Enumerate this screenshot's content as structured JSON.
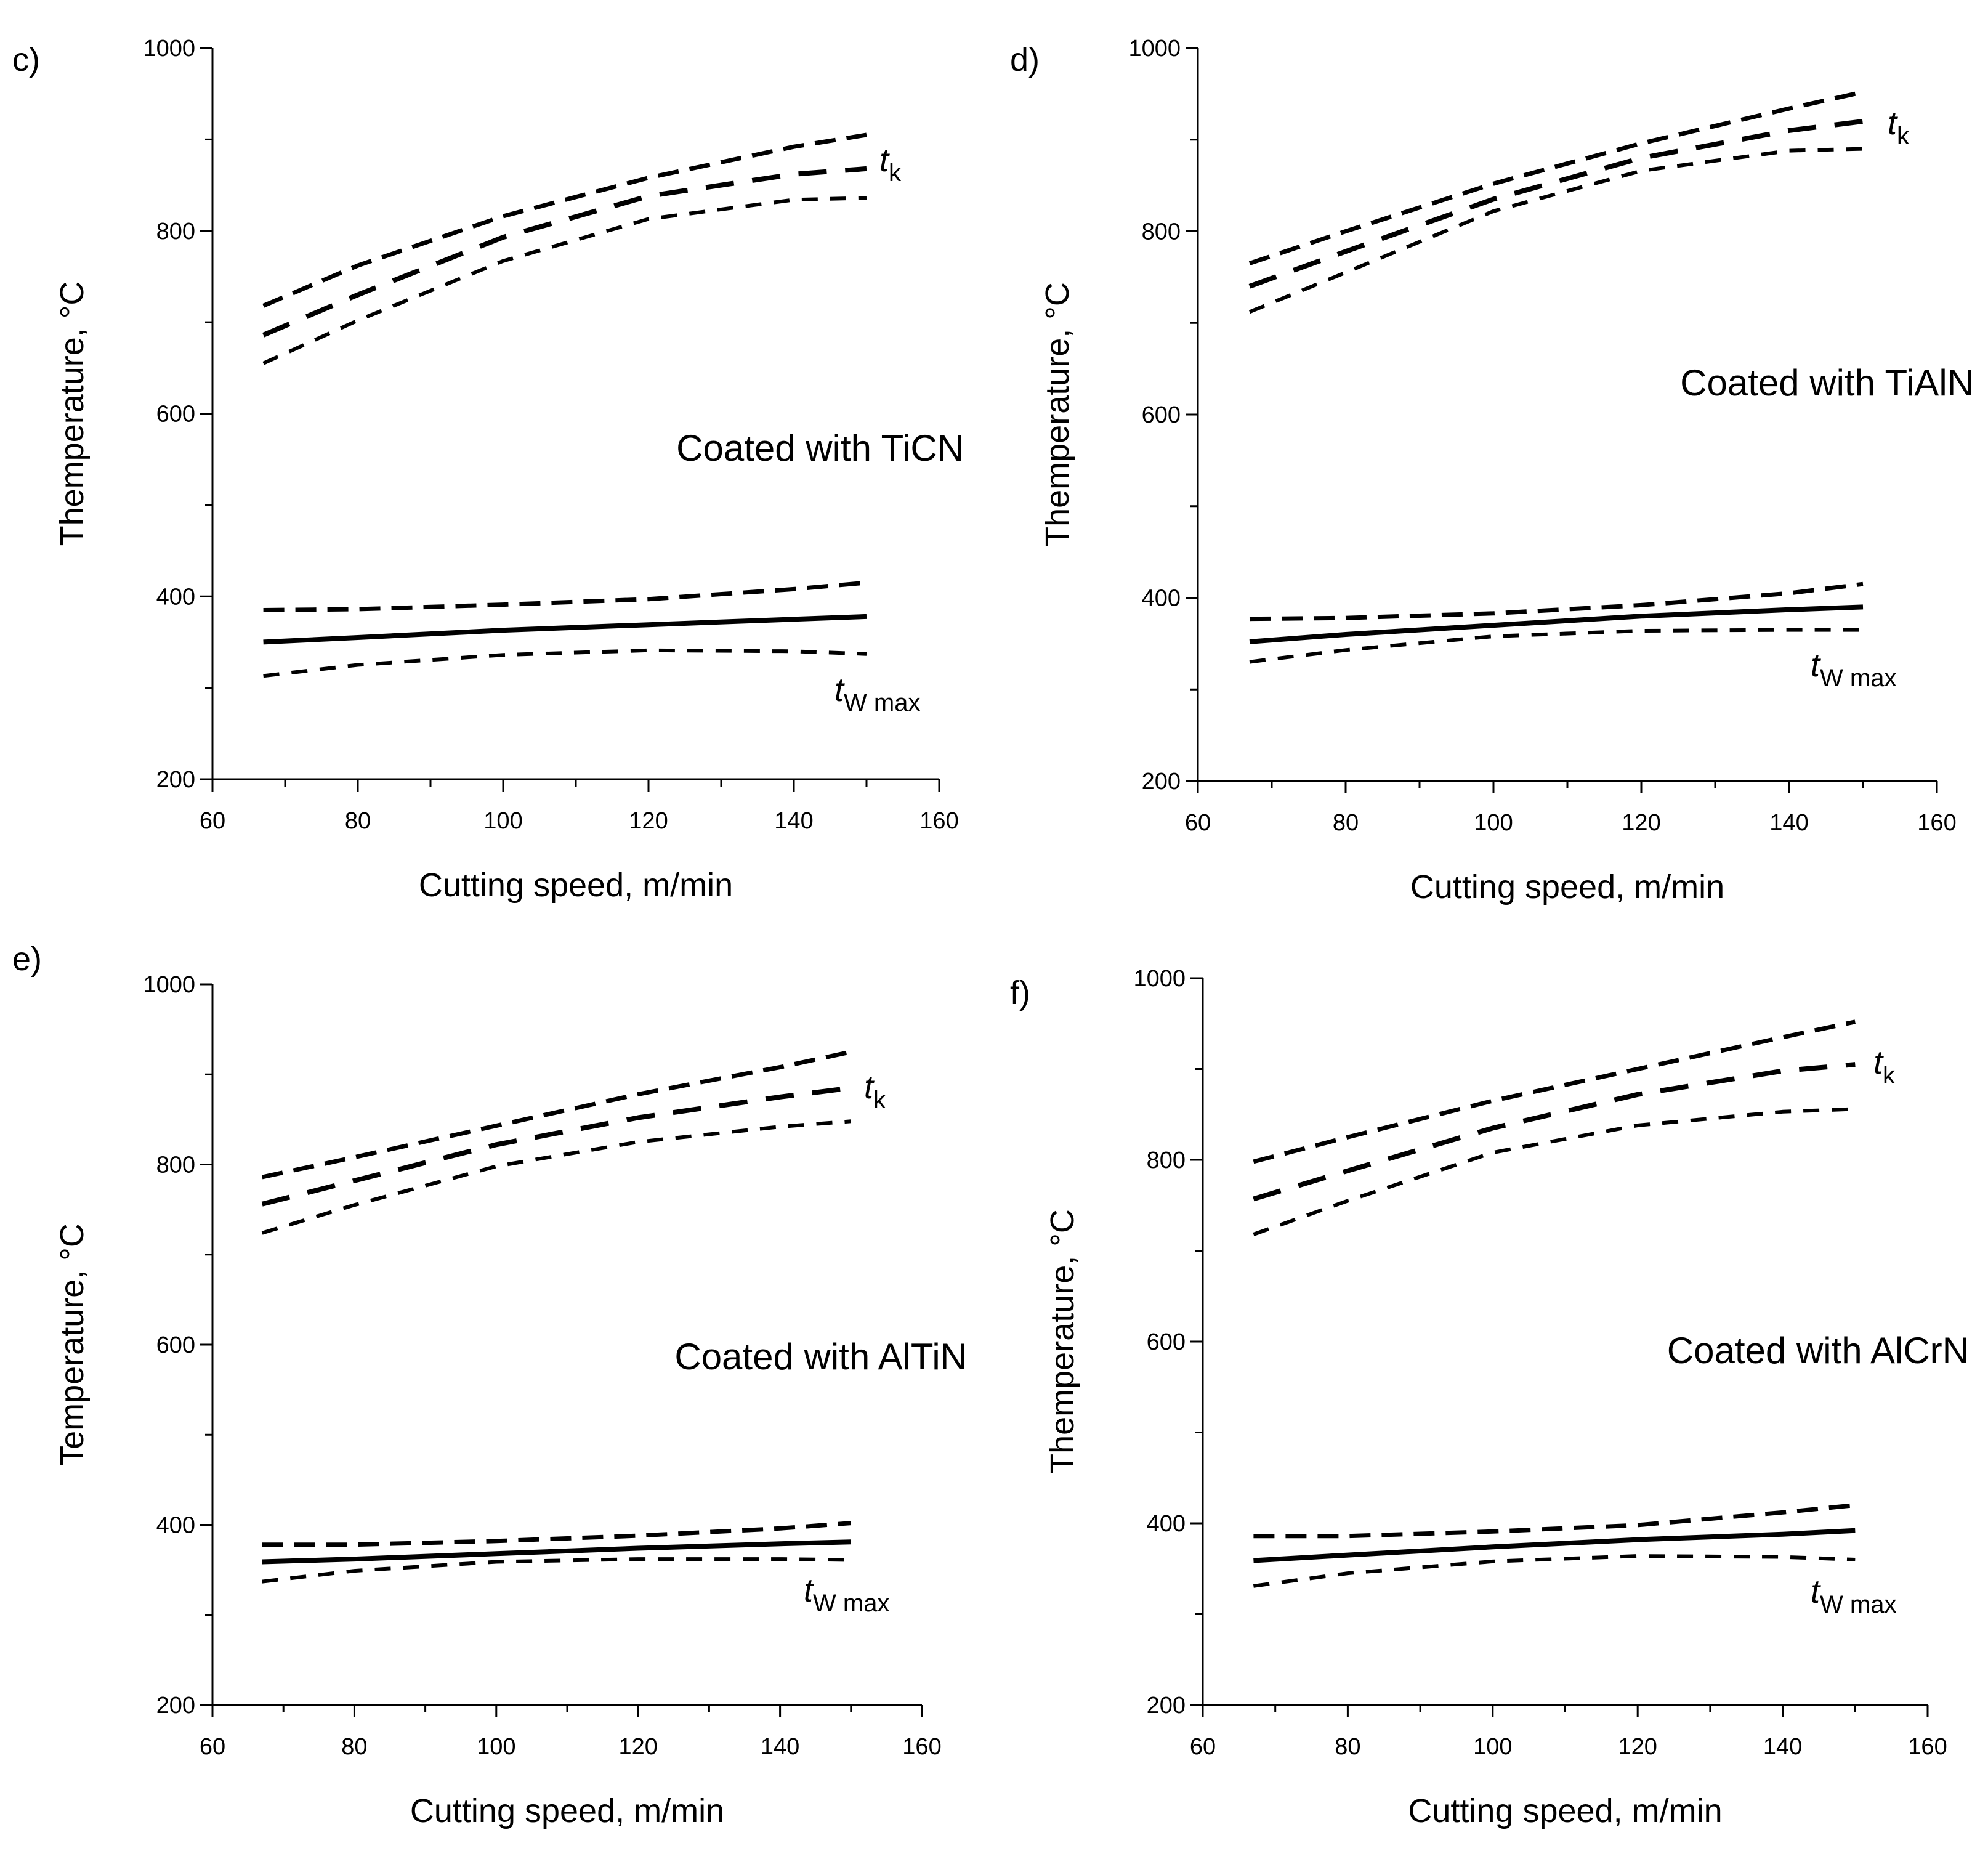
{
  "chart_data": [
    {
      "type": "line",
      "panel_label": "c)",
      "annotation": "Coated with TiCN",
      "xlabel": "Cutting speed, m/min",
      "ylabel": "Themperature, °C",
      "xlim": [
        60,
        160
      ],
      "ylim": [
        200,
        1000
      ],
      "xticks": [
        60,
        80,
        100,
        120,
        140,
        160
      ],
      "yticks": [
        200,
        400,
        600,
        800,
        1000
      ],
      "curve_labels": [
        {
          "main": "t",
          "sub": "k"
        },
        {
          "main": "t",
          "sub": "W max"
        }
      ],
      "series": [
        {
          "group": "tk",
          "style": "upper",
          "x": [
            67,
            80,
            100,
            120,
            140,
            150
          ],
          "y": [
            718,
            762,
            816,
            858,
            892,
            905
          ]
        },
        {
          "group": "tk",
          "style": "mean",
          "x": [
            67,
            80,
            100,
            120,
            140,
            150
          ],
          "y": [
            686,
            730,
            793,
            838,
            862,
            868
          ]
        },
        {
          "group": "tk",
          "style": "lower",
          "x": [
            67,
            80,
            100,
            120,
            140,
            150
          ],
          "y": [
            655,
            702,
            767,
            813,
            834,
            836
          ]
        },
        {
          "group": "tw",
          "style": "upper",
          "x": [
            67,
            80,
            100,
            120,
            140,
            150
          ],
          "y": [
            385,
            386,
            391,
            397,
            408,
            415
          ]
        },
        {
          "group": "tw",
          "style": "mean",
          "x": [
            67,
            80,
            100,
            120,
            140,
            150
          ],
          "y": [
            350,
            355,
            363,
            369,
            375,
            378
          ]
        },
        {
          "group": "tw",
          "style": "lower",
          "x": [
            67,
            80,
            100,
            120,
            140,
            150
          ],
          "y": [
            313,
            325,
            336,
            341,
            340,
            337
          ]
        }
      ]
    },
    {
      "type": "line",
      "panel_label": "d)",
      "annotation": "Coated with TiAlN",
      "xlabel": "Cutting speed, m/min",
      "ylabel": "Themperature, °C",
      "xlim": [
        60,
        160
      ],
      "ylim": [
        200,
        1000
      ],
      "xticks": [
        60,
        80,
        100,
        120,
        140,
        160
      ],
      "yticks": [
        200,
        400,
        600,
        800,
        1000
      ],
      "curve_labels": [
        {
          "main": "t",
          "sub": "k"
        },
        {
          "main": "t",
          "sub": "W max"
        }
      ],
      "series": [
        {
          "group": "tk",
          "style": "upper",
          "x": [
            67,
            80,
            100,
            120,
            140,
            150
          ],
          "y": [
            765,
            800,
            852,
            896,
            934,
            952
          ]
        },
        {
          "group": "tk",
          "style": "mean",
          "x": [
            67,
            80,
            100,
            120,
            140,
            150
          ],
          "y": [
            740,
            778,
            835,
            880,
            910,
            920
          ]
        },
        {
          "group": "tk",
          "style": "lower",
          "x": [
            67,
            80,
            100,
            120,
            140,
            150
          ],
          "y": [
            712,
            755,
            822,
            866,
            888,
            890
          ]
        },
        {
          "group": "tw",
          "style": "upper",
          "x": [
            67,
            80,
            100,
            120,
            140,
            150
          ],
          "y": [
            377,
            378,
            383,
            392,
            405,
            415
          ]
        },
        {
          "group": "tw",
          "style": "mean",
          "x": [
            67,
            80,
            100,
            120,
            140,
            150
          ],
          "y": [
            352,
            360,
            370,
            380,
            387,
            390
          ]
        },
        {
          "group": "tw",
          "style": "lower",
          "x": [
            67,
            80,
            100,
            120,
            140,
            150
          ],
          "y": [
            330,
            343,
            358,
            364,
            365,
            365
          ]
        }
      ]
    },
    {
      "type": "line",
      "panel_label": "e)",
      "annotation": "Coated with AlTiN",
      "xlabel": "Cutting speed, m/min",
      "ylabel": "Temperature, °C",
      "xlim": [
        60,
        160
      ],
      "ylim": [
        200,
        1000
      ],
      "xticks": [
        60,
        80,
        100,
        120,
        140,
        160
      ],
      "yticks": [
        200,
        400,
        600,
        800,
        1000
      ],
      "curve_labels": [
        {
          "main": "t",
          "sub": "k"
        },
        {
          "main": "t",
          "sub": "W max"
        }
      ],
      "series": [
        {
          "group": "tk",
          "style": "upper",
          "x": [
            67,
            80,
            100,
            120,
            140,
            150
          ],
          "y": [
            786,
            808,
            843,
            878,
            908,
            925
          ]
        },
        {
          "group": "tk",
          "style": "mean",
          "x": [
            67,
            80,
            100,
            120,
            140,
            150
          ],
          "y": [
            756,
            782,
            822,
            852,
            875,
            885
          ]
        },
        {
          "group": "tk",
          "style": "lower",
          "x": [
            67,
            80,
            100,
            120,
            140,
            150
          ],
          "y": [
            724,
            755,
            798,
            825,
            842,
            848
          ]
        },
        {
          "group": "tw",
          "style": "upper",
          "x": [
            67,
            80,
            100,
            120,
            140,
            150
          ],
          "y": [
            378,
            378,
            382,
            388,
            396,
            402
          ]
        },
        {
          "group": "tw",
          "style": "mean",
          "x": [
            67,
            80,
            100,
            120,
            140,
            150
          ],
          "y": [
            359,
            362,
            368,
            374,
            379,
            381
          ]
        },
        {
          "group": "tw",
          "style": "lower",
          "x": [
            67,
            80,
            100,
            120,
            140,
            150
          ],
          "y": [
            337,
            349,
            359,
            362,
            362,
            361
          ]
        }
      ]
    },
    {
      "type": "line",
      "panel_label": "f)",
      "annotation": "Coated with AlCrN",
      "xlabel": "Cutting speed, m/min",
      "ylabel": "Themperature, °C",
      "xlim": [
        60,
        160
      ],
      "ylim": [
        200,
        1000
      ],
      "xticks": [
        60,
        80,
        100,
        120,
        140,
        160
      ],
      "yticks": [
        200,
        400,
        600,
        800,
        1000
      ],
      "curve_labels": [
        {
          "main": "t",
          "sub": "k"
        },
        {
          "main": "t",
          "sub": "W max"
        }
      ],
      "series": [
        {
          "group": "tk",
          "style": "upper",
          "x": [
            67,
            80,
            100,
            120,
            140,
            150
          ],
          "y": [
            798,
            825,
            865,
            900,
            935,
            952
          ]
        },
        {
          "group": "tk",
          "style": "mean",
          "x": [
            67,
            80,
            100,
            120,
            140,
            150
          ],
          "y": [
            757,
            788,
            835,
            872,
            898,
            905
          ]
        },
        {
          "group": "tk",
          "style": "lower",
          "x": [
            67,
            80,
            100,
            120,
            140,
            150
          ],
          "y": [
            718,
            755,
            808,
            838,
            853,
            856
          ]
        },
        {
          "group": "tw",
          "style": "upper",
          "x": [
            67,
            80,
            100,
            120,
            140,
            150
          ],
          "y": [
            386,
            386,
            391,
            398,
            412,
            420
          ]
        },
        {
          "group": "tw",
          "style": "mean",
          "x": [
            67,
            80,
            100,
            120,
            140,
            150
          ],
          "y": [
            359,
            365,
            374,
            382,
            388,
            392
          ]
        },
        {
          "group": "tw",
          "style": "lower",
          "x": [
            67,
            80,
            100,
            120,
            140,
            150
          ],
          "y": [
            331,
            345,
            358,
            364,
            363,
            360
          ]
        }
      ]
    }
  ]
}
